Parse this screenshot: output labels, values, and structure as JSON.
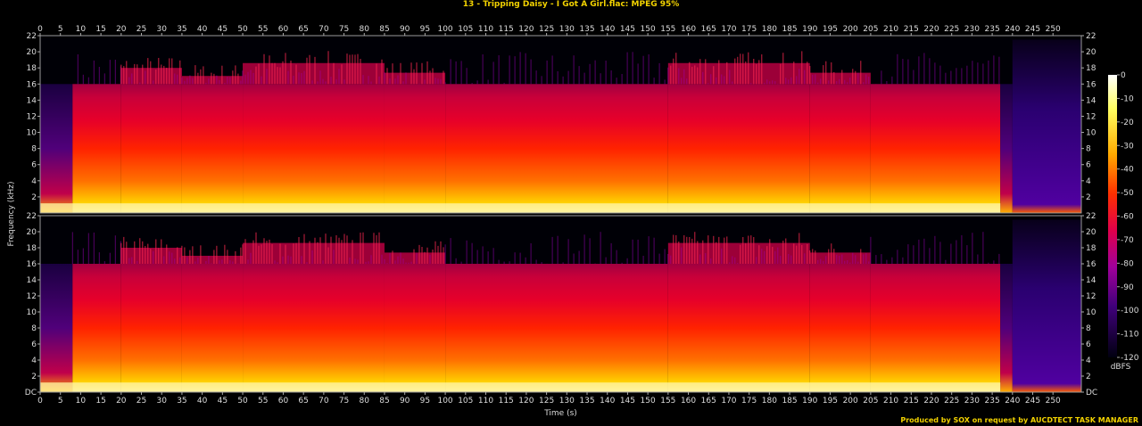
{
  "header": {
    "title": "13 - Tripping Daisy - I Got A Girl.flac: MPEG 95%"
  },
  "footer": {
    "credit": "Produced by SOX on request by AUCDTECT TASK MANAGER"
  },
  "chart_data": {
    "type": "heatmap",
    "xlabel": "Time (s)",
    "ylabel": "Frequency (kHz)",
    "xlim": [
      0,
      257
    ],
    "x_ticks": [
      0,
      5,
      10,
      15,
      20,
      25,
      30,
      35,
      40,
      45,
      50,
      55,
      60,
      65,
      70,
      75,
      80,
      85,
      90,
      95,
      100,
      105,
      110,
      115,
      120,
      125,
      130,
      135,
      140,
      145,
      150,
      155,
      160,
      165,
      170,
      175,
      180,
      185,
      190,
      195,
      200,
      205,
      210,
      215,
      220,
      225,
      230,
      235,
      240,
      245,
      250
    ],
    "y_ticks_top": [
      "22",
      "20",
      "18",
      "16",
      "14",
      "12",
      "10",
      "8",
      "6",
      "4",
      "2"
    ],
    "y_ticks_bottom": [
      "22",
      "20",
      "18",
      "16",
      "14",
      "12",
      "10",
      "8",
      "6",
      "4",
      "2",
      "DC"
    ],
    "ylim_khz": [
      0,
      22
    ],
    "channels": 2,
    "colorbar": {
      "unit": "dBFS",
      "ticks": [
        "0",
        "-10",
        "-20",
        "-30",
        "-40",
        "-50",
        "-60",
        "-70",
        "-80",
        "-90",
        "-100",
        "-110",
        "-120"
      ],
      "range": [
        -120,
        0
      ]
    },
    "lowpass_cutoff_khz": 16,
    "segments": [
      {
        "start": 0,
        "end": 8,
        "level": 0.35
      },
      {
        "start": 8,
        "end": 20,
        "level": 0.55
      },
      {
        "start": 20,
        "end": 35,
        "level": 0.85
      },
      {
        "start": 35,
        "end": 50,
        "level": 0.8
      },
      {
        "start": 50,
        "end": 85,
        "level": 0.88
      },
      {
        "start": 85,
        "end": 100,
        "level": 0.82
      },
      {
        "start": 100,
        "end": 155,
        "level": 0.72
      },
      {
        "start": 155,
        "end": 190,
        "level": 0.88
      },
      {
        "start": 190,
        "end": 205,
        "level": 0.82
      },
      {
        "start": 205,
        "end": 237,
        "level": 0.75
      },
      {
        "start": 237,
        "end": 240,
        "level": 0.4
      },
      {
        "start": 240,
        "end": 257,
        "level": 0.0
      }
    ]
  }
}
